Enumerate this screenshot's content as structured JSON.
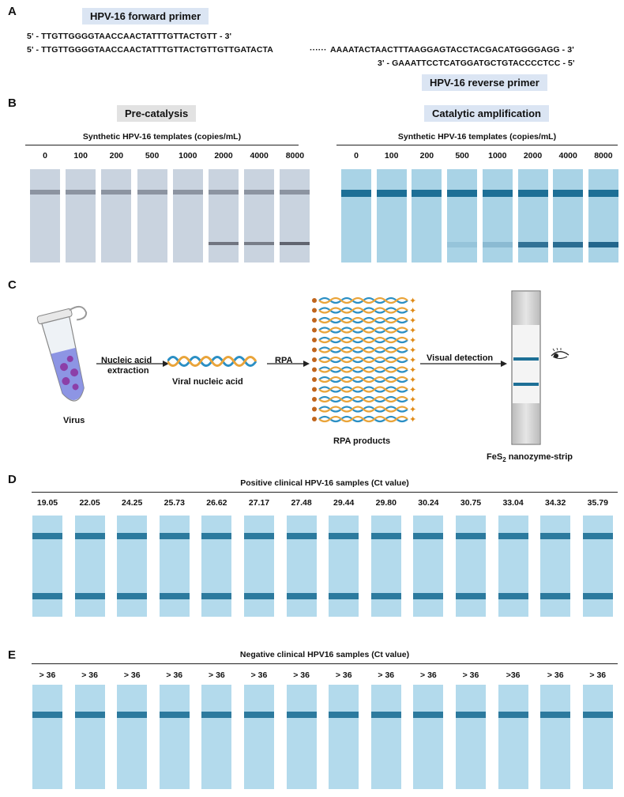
{
  "panelA": {
    "label": "A",
    "forward_primer_title": "HPV-16 forward primer",
    "reverse_primer_title": "HPV-16 reverse primer",
    "seq_line1": "5' - TTGTTGGGGTAACCAACTATTTGTTACTGTT - 3'",
    "seq_line2_left": "5' - TTGTTGGGGTAACCAACTATTTGTTACTGTTGTTGATACTA",
    "seq_ellipsis": "······",
    "seq_line2_right": "AAAATACTAACTTTAAGGAGTACCTACGACATGGGGAGG - 3'",
    "seq_line3": "3' - GAAATTCCTCATGGATGCTGTACCCCTCC - 5'"
  },
  "panelB": {
    "label": "B",
    "left_title": "Pre-catalysis",
    "right_title": "Catalytic amplification",
    "subtitle": "Synthetic HPV-16 templates (copies/mL)",
    "concentrations": [
      "0",
      "100",
      "200",
      "500",
      "1000",
      "2000",
      "4000",
      "8000"
    ],
    "pre_test_line_intensity": [
      0,
      0,
      0,
      0,
      0,
      0.55,
      0.5,
      0.65
    ],
    "cat_test_line_intensity": [
      0,
      0,
      0,
      0.12,
      0.2,
      0.8,
      0.85,
      0.9
    ]
  },
  "panelC": {
    "label": "C",
    "virus_label": "Virus",
    "step1_line1": "Nucleic acid",
    "step1_line2": "extraction",
    "viral_na_label": "Viral nucleic acid",
    "rpa_label": "RPA",
    "rpa_products_label": "RPA products",
    "visual_detection_label": "Visual detection",
    "strip_label_prefix": "FeS",
    "strip_label_sub": "2",
    "strip_label_suffix": " nanozyme-strip"
  },
  "panelD": {
    "label": "D",
    "title": "Positive clinical HPV-16 samples (Ct value)",
    "ct_values": [
      "19.05",
      "22.05",
      "24.25",
      "25.73",
      "26.62",
      "27.17",
      "27.48",
      "29.44",
      "29.80",
      "30.24",
      "30.75",
      "33.04",
      "34.32",
      "35.79"
    ]
  },
  "panelE": {
    "label": "E",
    "title": "Negative clinical HPV16 samples (Ct value)",
    "ct_values": [
      "> 36",
      "> 36",
      "> 36",
      "> 36",
      "> 36",
      "> 36",
      "> 36",
      "> 36",
      "> 36",
      "> 36",
      "> 36",
      ">36",
      "> 36",
      "> 36"
    ]
  },
  "colors": {
    "primer_box": "#dbe5f3",
    "pre_strip": "#c9d3df",
    "cat_strip": "#a9d3e6",
    "band_blue": "#1d6f96",
    "clinical_strip": "#b3daec"
  }
}
